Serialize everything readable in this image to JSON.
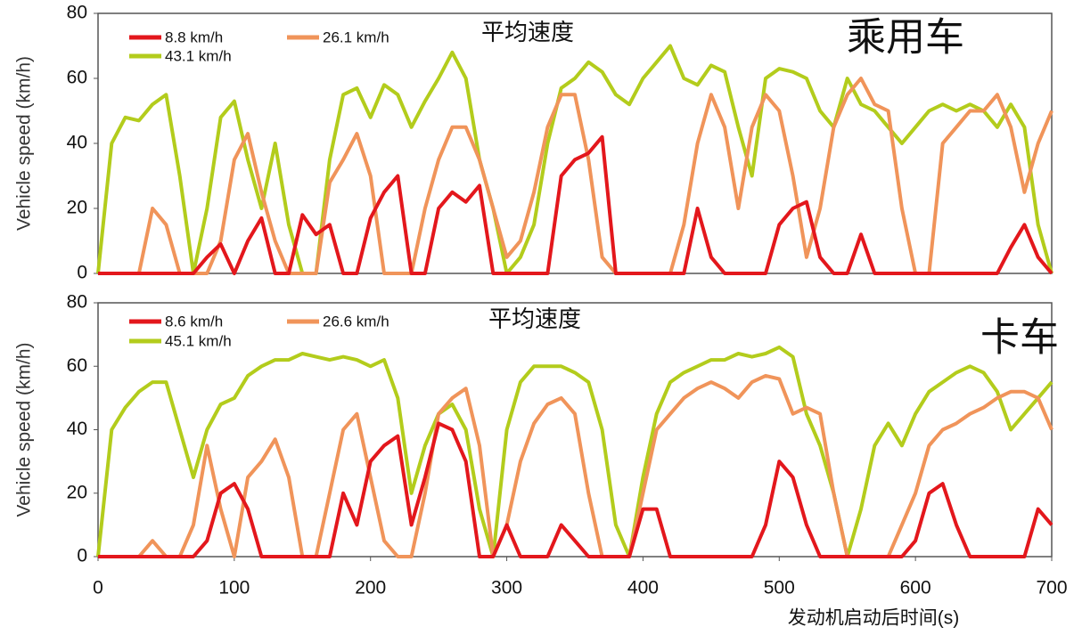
{
  "chart_data": [
    {
      "type": "line",
      "ylabel": "Vehicle speed (km/h)",
      "annotations": [
        "平均速度",
        "乘用车"
      ],
      "xlim": [
        0,
        700
      ],
      "ylim": [
        0,
        80
      ],
      "yticks": [
        0,
        20,
        40,
        60,
        80
      ],
      "legend": "upper left",
      "x": [
        0,
        10,
        20,
        30,
        40,
        50,
        60,
        70,
        80,
        90,
        100,
        110,
        120,
        130,
        140,
        150,
        160,
        170,
        180,
        190,
        200,
        210,
        220,
        230,
        240,
        250,
        260,
        270,
        280,
        290,
        300,
        310,
        320,
        330,
        340,
        350,
        360,
        370,
        380,
        390,
        400,
        410,
        420,
        430,
        440,
        450,
        460,
        470,
        480,
        490,
        500,
        510,
        520,
        530,
        540,
        550,
        560,
        570,
        580,
        590,
        600,
        610,
        620,
        630,
        640,
        650,
        660,
        670,
        680,
        690,
        700
      ],
      "series": [
        {
          "name": "8.8 km/h",
          "color": "#e3171c",
          "values": [
            0,
            0,
            0,
            0,
            0,
            0,
            0,
            0,
            5,
            9,
            0,
            10,
            17,
            0,
            0,
            18,
            12,
            15,
            0,
            0,
            17,
            25,
            30,
            0,
            0,
            20,
            25,
            22,
            27,
            0,
            0,
            0,
            0,
            0,
            30,
            35,
            37,
            42,
            0,
            0,
            0,
            0,
            0,
            0,
            20,
            5,
            0,
            0,
            0,
            0,
            15,
            20,
            22,
            5,
            0,
            0,
            12,
            0,
            0,
            0,
            0,
            0,
            0,
            0,
            0,
            0,
            0,
            8,
            15,
            5,
            0
          ]
        },
        {
          "name": "26.1 km/h",
          "color": "#f0945a",
          "values": [
            0,
            0,
            0,
            0,
            20,
            15,
            0,
            0,
            0,
            10,
            35,
            43,
            25,
            10,
            0,
            0,
            0,
            28,
            35,
            43,
            30,
            0,
            0,
            0,
            20,
            35,
            45,
            45,
            35,
            20,
            5,
            10,
            25,
            45,
            55,
            55,
            35,
            5,
            0,
            0,
            0,
            0,
            0,
            15,
            40,
            55,
            45,
            20,
            45,
            55,
            50,
            30,
            5,
            20,
            45,
            55,
            60,
            52,
            50,
            20,
            0,
            0,
            40,
            45,
            50,
            50,
            55,
            45,
            25,
            40,
            50
          ]
        },
        {
          "name": "43.1 km/h",
          "color": "#b3cc1c",
          "values": [
            0,
            40,
            48,
            47,
            52,
            55,
            30,
            0,
            20,
            48,
            53,
            35,
            20,
            40,
            15,
            0,
            0,
            35,
            55,
            57,
            48,
            58,
            55,
            45,
            53,
            60,
            68,
            60,
            35,
            20,
            0,
            5,
            15,
            40,
            57,
            60,
            65,
            62,
            55,
            52,
            60,
            65,
            70,
            60,
            58,
            64,
            62,
            45,
            30,
            60,
            63,
            62,
            60,
            50,
            45,
            60,
            52,
            50,
            45,
            40,
            45,
            50,
            52,
            50,
            52,
            50,
            45,
            52,
            45,
            15,
            0
          ]
        }
      ]
    },
    {
      "type": "line",
      "ylabel": "Vehicle speed (km/h)",
      "xlabel": "发动机启动后时间(s)",
      "annotations": [
        "平均速度",
        "卡车"
      ],
      "xlim": [
        0,
        700
      ],
      "ylim": [
        0,
        80
      ],
      "xticks": [
        0,
        100,
        200,
        300,
        400,
        500,
        600,
        700
      ],
      "yticks": [
        0,
        20,
        40,
        60,
        80
      ],
      "legend": "upper left",
      "x": [
        0,
        10,
        20,
        30,
        40,
        50,
        60,
        70,
        80,
        90,
        100,
        110,
        120,
        130,
        140,
        150,
        160,
        170,
        180,
        190,
        200,
        210,
        220,
        230,
        240,
        250,
        260,
        270,
        280,
        290,
        300,
        310,
        320,
        330,
        340,
        350,
        360,
        370,
        380,
        390,
        400,
        410,
        420,
        430,
        440,
        450,
        460,
        470,
        480,
        490,
        500,
        510,
        520,
        530,
        540,
        550,
        560,
        570,
        580,
        590,
        600,
        610,
        620,
        630,
        640,
        650,
        660,
        670,
        680,
        690,
        700
      ],
      "series": [
        {
          "name": "8.6 km/h",
          "color": "#e3171c",
          "values": [
            0,
            0,
            0,
            0,
            0,
            0,
            0,
            0,
            5,
            20,
            23,
            15,
            0,
            0,
            0,
            0,
            0,
            0,
            20,
            10,
            30,
            35,
            38,
            10,
            25,
            42,
            40,
            30,
            0,
            0,
            10,
            0,
            0,
            0,
            10,
            5,
            0,
            0,
            0,
            0,
            15,
            15,
            0,
            0,
            0,
            0,
            0,
            0,
            0,
            10,
            30,
            25,
            10,
            0,
            0,
            0,
            0,
            0,
            0,
            0,
            5,
            20,
            23,
            10,
            0,
            0,
            0,
            0,
            0,
            15,
            10
          ]
        },
        {
          "name": "26.6 km/h",
          "color": "#f0945a",
          "values": [
            0,
            0,
            0,
            0,
            5,
            0,
            0,
            10,
            35,
            15,
            0,
            25,
            30,
            37,
            25,
            0,
            0,
            20,
            40,
            45,
            25,
            5,
            0,
            0,
            20,
            45,
            50,
            53,
            35,
            0,
            10,
            30,
            42,
            48,
            50,
            45,
            20,
            0,
            0,
            0,
            20,
            40,
            45,
            50,
            53,
            55,
            53,
            50,
            55,
            57,
            56,
            45,
            47,
            45,
            20,
            0,
            0,
            0,
            0,
            10,
            20,
            35,
            40,
            42,
            45,
            47,
            50,
            52,
            52,
            50,
            40
          ]
        },
        {
          "name": "45.1 km/h",
          "color": "#b3cc1c",
          "values": [
            0,
            40,
            47,
            52,
            55,
            55,
            40,
            25,
            40,
            48,
            50,
            57,
            60,
            62,
            62,
            64,
            63,
            62,
            63,
            62,
            60,
            62,
            50,
            20,
            35,
            45,
            48,
            40,
            15,
            0,
            40,
            55,
            60,
            60,
            60,
            58,
            55,
            40,
            10,
            0,
            25,
            45,
            55,
            58,
            60,
            62,
            62,
            64,
            63,
            64,
            66,
            63,
            45,
            35,
            20,
            0,
            15,
            35,
            42,
            35,
            45,
            52,
            55,
            58,
            60,
            58,
            52,
            40,
            45,
            50,
            55
          ]
        }
      ]
    }
  ]
}
